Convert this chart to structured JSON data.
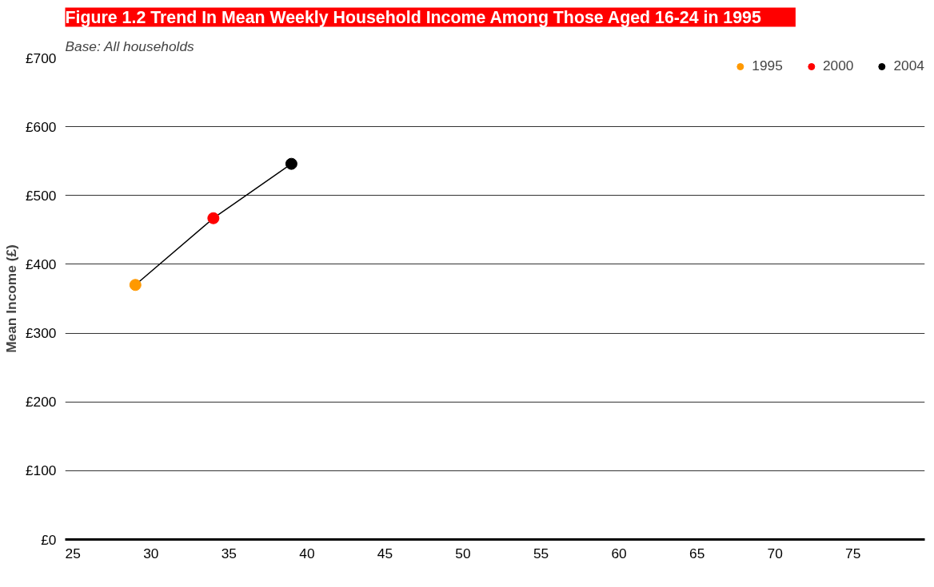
{
  "chart_data": {
    "type": "scatter",
    "title": "Figure 1.2        Trend In Mean Weekly Household Income Among Those Aged 16-24 in 1995",
    "subtitle": "Base: All households",
    "ylabel": "Mean Income (£)",
    "series": [
      {
        "type": "line",
        "color": "#000000",
        "x": [
          29,
          34,
          39
        ],
        "values": [
          370,
          467,
          546
        ],
        "marker": "none"
      },
      {
        "name": "1995",
        "color": "#ff9900",
        "x": [
          29
        ],
        "values": [
          370
        ]
      },
      {
        "name": "2000",
        "color": "#ff0000",
        "x": [
          34
        ],
        "values": [
          467
        ]
      },
      {
        "name": "2004",
        "color": "#000000",
        "x": [
          39
        ],
        "values": [
          546
        ]
      }
    ],
    "marker": "circle",
    "xlim": [
      24.5,
      79.6
    ],
    "xticks": [
      25,
      30,
      35,
      40,
      45,
      50,
      55,
      60,
      65,
      70,
      75
    ],
    "ylim": [
      0,
      700
    ],
    "yticks": [
      {
        "value": 0,
        "label": "£0"
      },
      {
        "value": 100,
        "label": "£100"
      },
      {
        "value": 200,
        "label": "£200"
      },
      {
        "value": 300,
        "label": "£300"
      },
      {
        "value": 400,
        "label": "£400"
      },
      {
        "value": 500,
        "label": "£500"
      },
      {
        "value": 600,
        "label": "£600"
      },
      {
        "value": 700,
        "label": "£700"
      }
    ],
    "grid": "y",
    "legend": "top right"
  }
}
